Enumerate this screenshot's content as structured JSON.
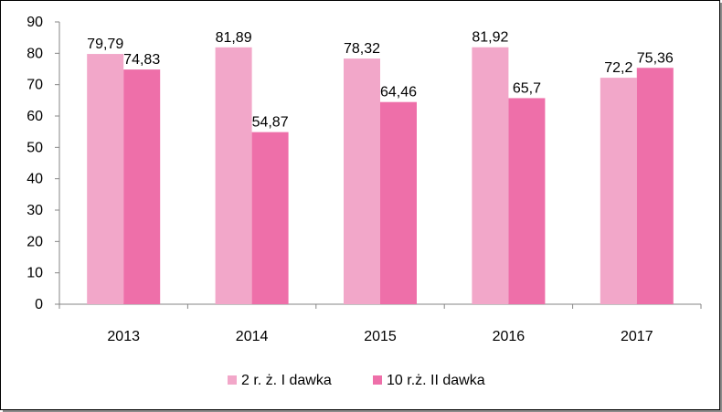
{
  "chart_data": {
    "type": "bar",
    "title": "",
    "xlabel": "",
    "ylabel": "",
    "categories": [
      "2013",
      "2014",
      "2015",
      "2016",
      "2017"
    ],
    "series": [
      {
        "name": "2 r. ż. I dawka",
        "values": [
          79.79,
          81.89,
          78.32,
          81.92,
          72.2
        ],
        "labels": [
          "79,79",
          "81,89",
          "78,32",
          "81,92",
          "72,2"
        ],
        "color": "#f2a7c9"
      },
      {
        "name": "10 r.ż. II dawka",
        "values": [
          74.83,
          54.87,
          64.46,
          65.7,
          75.36
        ],
        "labels": [
          "74,83",
          "54,87",
          "64,46",
          "65,7",
          "75,36"
        ],
        "color": "#ee6fa9"
      }
    ],
    "ylim": [
      0,
      90
    ],
    "yticks": [
      0,
      10,
      20,
      30,
      40,
      50,
      60,
      70,
      80,
      90
    ],
    "grid": false,
    "legend": "bottom"
  }
}
